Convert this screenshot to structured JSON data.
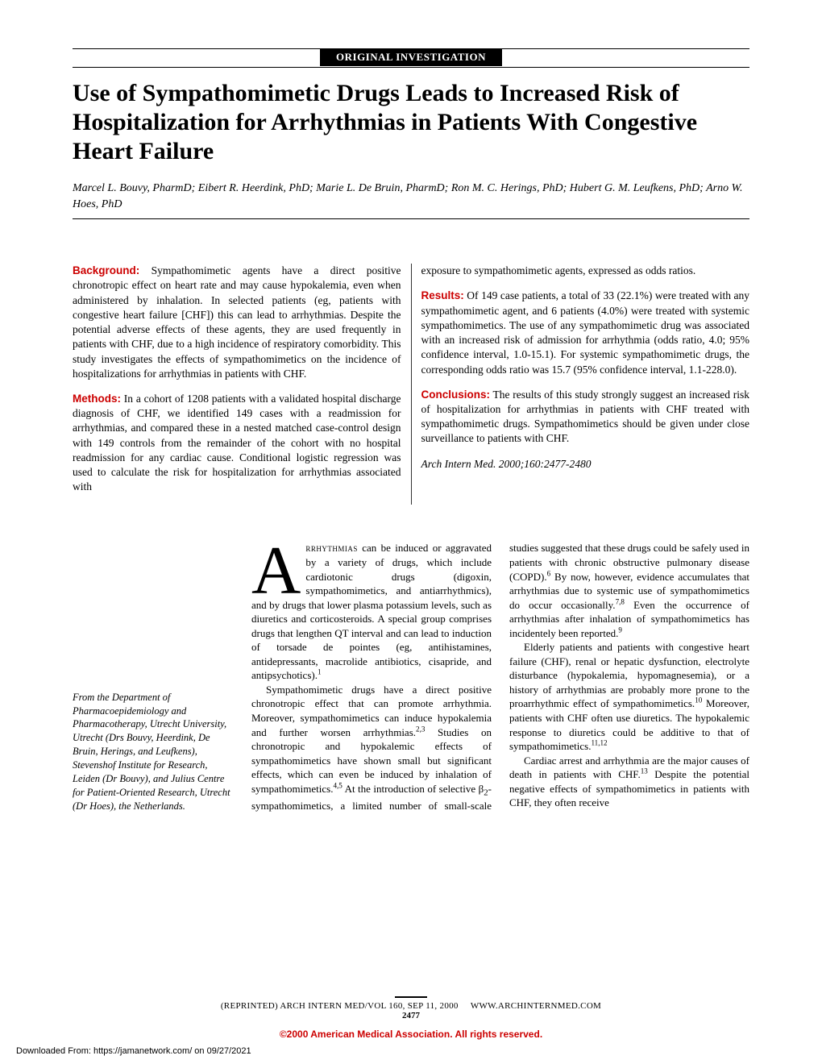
{
  "section_label": "ORIGINAL INVESTIGATION",
  "title": "Use of Sympathomimetic Drugs Leads to Increased Risk of Hospitalization for Arrhythmias in Patients With Congestive Heart Failure",
  "authors": "Marcel L. Bouvy, PharmD; Eibert R. Heerdink, PhD; Marie L. De Bruin, PharmD; Ron M. C. Herings, PhD; Hubert G. M. Leufkens, PhD; Arno W. Hoes, PhD",
  "abstract": {
    "background_head": "Background:",
    "background": " Sympathomimetic agents have a direct positive chronotropic effect on heart rate and may cause hypokalemia, even when administered by inhalation. In selected patients (eg, patients with congestive heart failure [CHF]) this can lead to arrhythmias. Despite the potential adverse effects of these agents, they are used frequently in patients with CHF, due to a high incidence of respiratory comorbidity. This study investigates the effects of sympathomimetics on the incidence of hospitalizations for arrhythmias in patients with CHF.",
    "methods_head": "Methods:",
    "methods": " In a cohort of 1208 patients with a validated hospital discharge diagnosis of CHF, we identified 149 cases with a readmission for arrhythmias, and compared these in a nested matched case-control design with 149 controls from the remainder of the cohort with no hospital readmission for any cardiac cause. Conditional logistic regression was used to calculate the risk for hospitalization for arrhythmias associated with",
    "col2_cont": "exposure to sympathomimetic agents, expressed as odds ratios.",
    "results_head": "Results:",
    "results": " Of 149 case patients, a total of 33 (22.1%) were treated with any sympathomimetic agent, and 6 patients (4.0%) were treated with systemic sympathomimetics. The use of any sympathomimetic drug was associated with an increased risk of admission for arrhythmia (odds ratio, 4.0; 95% confidence interval, 1.0-15.1). For systemic sympathomimetic drugs, the corresponding odds ratio was 15.7 (95% confidence interval, 1.1-228.0).",
    "conclusions_head": "Conclusions:",
    "conclusions": " The results of this study strongly suggest an increased risk of hospitalization for arrhythmias in patients with CHF treated with sympathomimetic drugs. Sympathomimetics should be given under close surveillance to patients with CHF.",
    "citation": "Arch Intern Med. 2000;160:2477-2480"
  },
  "affiliation": "From the Department of Pharmacoepidemiology and Pharmacotherapy, Utrecht University, Utrecht (Drs Bouvy, Heerdink, De Bruin, Herings, and Leufkens), Stevenshof Institute for Research, Leiden (Dr Bouvy), and Julius Centre for Patient-Oriented Research, Utrecht (Dr Hoes), the Netherlands.",
  "body": {
    "dropcap": "A",
    "p1_start": "rrhythmias",
    "p1_rest": " can be induced or aggravated by a variety of drugs, which include cardiotonic drugs (digoxin, sympathomimetics, and antiarrhythmics), and by drugs that lower plasma potassium levels, such as diuretics and corticosteroids. A special group comprises drugs that lengthen QT interval and can lead to induction of torsade de pointes (eg, antihistamines, antidepressants, macrolide antibiotics, cisapride, and antipsychotics).",
    "p1_sup": "1",
    "p2a": "Sympathomimetic drugs have a direct positive chronotropic effect that can promote arrhythmia. Moreover, sympathomimetics can induce hypokalemia and further worsen arrhythmias.",
    "p2_sup1": "2,3",
    "p2b": " Studies on chronotropic and hypokalemic effects of sympathomimetics have shown small but significant effects, which can even be induced by inhalation of sympathomimetics.",
    "p2_sup2": "4,5",
    "p2c": " At the introduction of selective β",
    "p2_sub": "2",
    "p2d": "-sympathomimetics, a limited number of small-scale studies suggested that these drugs could be safely used in patients with chronic obstructive pulmonary disease (COPD).",
    "p2_sup3": "6",
    "p2e": " By now, however, evidence accumulates that arrhythmias due to systemic use of sympathomimetics do occur occasionally.",
    "p2_sup4": "7,8",
    "p2f": " Even the occurrence of arrhythmias after inhalation of sympathomimetics has incidentely been reported.",
    "p2_sup5": "9",
    "p3a": "Elderly patients and patients with congestive heart failure (CHF), renal or hepatic dysfunction, electrolyte disturbance (hypokalemia, hypomagnesemia), or a history of arrhythmias are probably more prone to the proarrhythmic effect of sympathomimetics.",
    "p3_sup1": "10",
    "p3b": " Moreover, patients with CHF often use diuretics. The hypokalemic response to diuretics could be additive to that of sympathomimetics.",
    "p3_sup2": "11,12",
    "p4a": "Cardiac arrest and arrhythmia are the major causes of death in patients with CHF.",
    "p4_sup1": "13",
    "p4b": " Despite the potential negative effects of sympathomimetics in patients with CHF, they often receive"
  },
  "footer": {
    "line1a": "(REPRINTED) ARCH INTERN MED/VOL 160, SEP 11, 2000",
    "line1b": "WWW.ARCHINTERNMED.COM",
    "page": "2477",
    "copyright": "©2000 American Medical Association. All rights reserved."
  },
  "download_note": "Downloaded From: https://jamanetwork.com/ on 09/27/2021"
}
